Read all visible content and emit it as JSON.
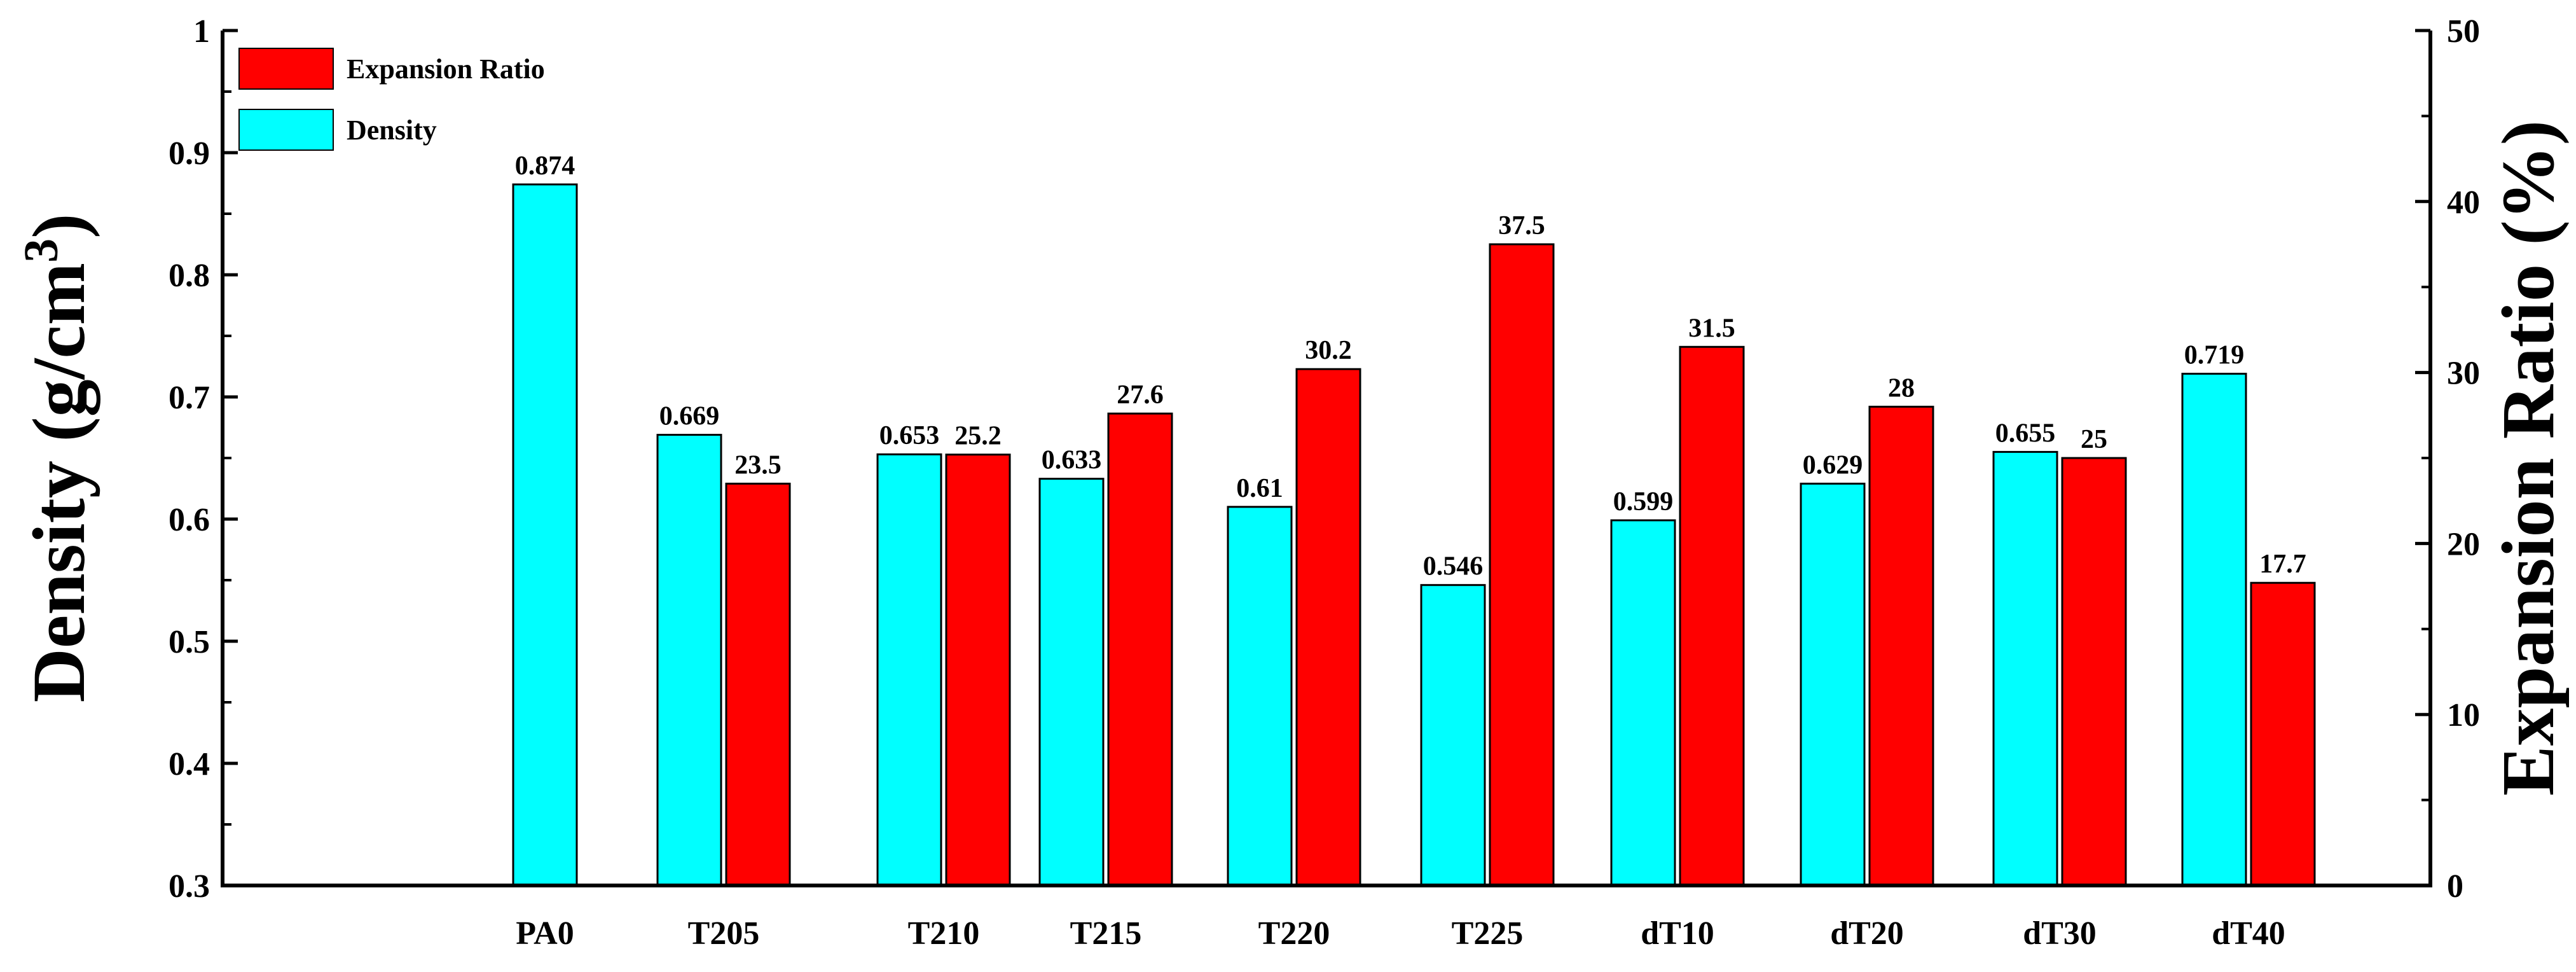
{
  "chart_data": {
    "type": "bar",
    "categories": [
      "PA0",
      "T205",
      "T210",
      "T215",
      "T220",
      "T225",
      "dT10",
      "dT20",
      "dT30",
      "dT40"
    ],
    "series": [
      {
        "name": "Density",
        "axis": "left",
        "color": "#00FFFF",
        "values": [
          0.874,
          0.669,
          0.653,
          0.633,
          0.61,
          0.546,
          0.599,
          0.629,
          0.655,
          0.719
        ],
        "labels": [
          "0.874",
          "0.669",
          "0.653",
          "0.633",
          "0.61",
          "0.546",
          "0.599",
          "0.629",
          "0.655",
          "0.719"
        ]
      },
      {
        "name": "Expansion Ratio",
        "axis": "right",
        "color": "#FF0000",
        "values": [
          null,
          23.5,
          25.2,
          27.6,
          30.2,
          37.5,
          31.5,
          28,
          25,
          17.7
        ],
        "labels": [
          "",
          "23.5",
          "25.2",
          "27.6",
          "30.2",
          "37.5",
          "31.5",
          "28",
          "25",
          "17.7"
        ]
      }
    ],
    "ylabel_left_main": "Density (g/cm",
    "ylabel_left_sup": "3",
    "ylabel_left_end": ")",
    "ylabel_right": "Expansion Ratio (%)",
    "ylim_left": [
      0.3,
      1.0
    ],
    "ylim_right": [
      0,
      50
    ],
    "yticks_left": [
      "0.3",
      "0.4",
      "0.5",
      "0.6",
      "0.7",
      "0.8",
      "0.9",
      "1"
    ],
    "yticks_right": [
      "0",
      "10",
      "20",
      "30",
      "40",
      "50"
    ],
    "legend": [
      {
        "label": "Expansion Ratio",
        "color": "#FF0000"
      },
      {
        "label": "Density",
        "color": "#00FFFF"
      }
    ],
    "legend_position": "top-left",
    "grid": false
  }
}
